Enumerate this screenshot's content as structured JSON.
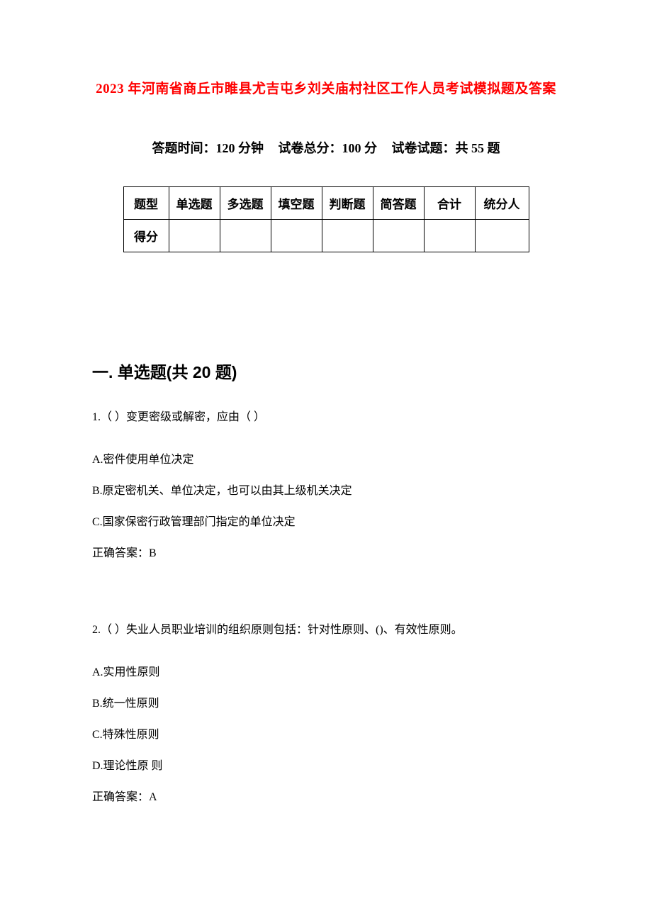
{
  "title": "2023 年河南省商丘市睢县尤吉屯乡刘关庙村社区工作人员考试模拟题及答案",
  "subtitle": {
    "time": "答题时间：120 分钟",
    "total": "试卷总分：100 分",
    "count": "试卷试题：共 55 题"
  },
  "scoreTable": {
    "row1": [
      "题型",
      "单选题",
      "多选题",
      "填空题",
      "判断题",
      "简答题",
      "合计",
      "统分人"
    ],
    "row2_label": "得分"
  },
  "section1": {
    "heading": "一. 单选题(共 20 题)",
    "q1": {
      "text": "1.（ ）变更密级或解密，应由（ ）",
      "a": "A.密件使用单位决定",
      "b": "B.原定密机关、单位决定，也可以由其上级机关决定",
      "c": "C.国家保密行政管理部门指定的单位决定",
      "ans": "正确答案：B"
    },
    "q2": {
      "text": "2.（ ）失业人员职业培训的组织原则包括：针对性原则、()、有效性原则。",
      "a": "A.实用性原则",
      "b": "B.统一性原则",
      "c": "C.特殊性原则",
      "d": "D.理论性原  则",
      "ans": "正确答案：A"
    }
  },
  "colors": {
    "title": "#ff0000",
    "text": "#000000",
    "border": "#000000",
    "background": "#ffffff"
  },
  "typography": {
    "title_fontsize": 19,
    "subtitle_fontsize": 18,
    "heading_fontsize": 23,
    "body_fontsize": 16
  }
}
